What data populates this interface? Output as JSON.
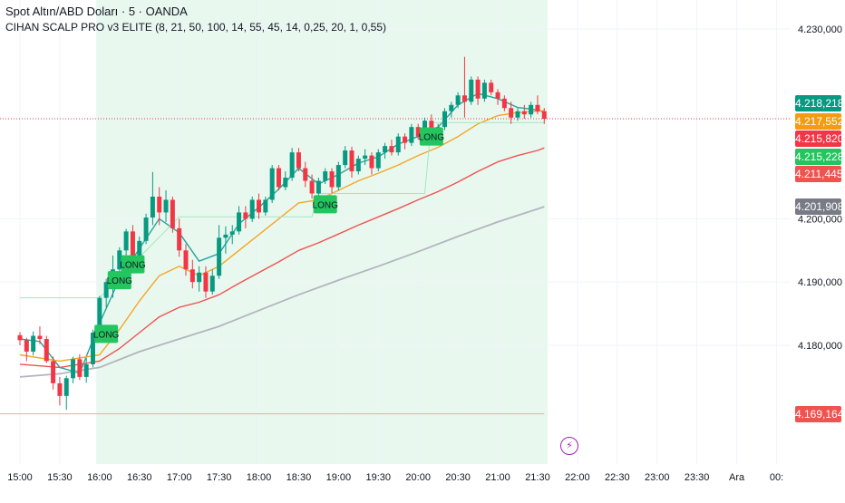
{
  "header": {
    "symbol_title": "Spot Altın/ABD Doları · 5 · OANDA",
    "indicator_title": "CIHAN SCALP PRO v3 ELITE (8, 21, 50, 100, 14, 55, 45, 14, 0,25, 20, 1, 0,55)"
  },
  "price_tags": [
    {
      "label": "4.218,218",
      "value": 4218.218,
      "color": "#089981"
    },
    {
      "label": "4.217,552",
      "value": 4217.552,
      "color": "#f39c12"
    },
    {
      "label": "4.215,820",
      "value": 4215.82,
      "color": "#f23645"
    },
    {
      "label": "4.215,228",
      "value": 4215.228,
      "color": "#22c55e"
    },
    {
      "label": "4.211,445",
      "value": 4211.445,
      "color": "#ef5350"
    },
    {
      "label": "4.201,908",
      "value": 4201.908,
      "color": "#787b86"
    },
    {
      "label": "4.169,164",
      "value": 4169.164,
      "color": "#ef5350"
    }
  ],
  "icons": {
    "bolt": "lightning-bolt-icon",
    "bolt_glyph": "⚡"
  },
  "colors": {
    "bull": "#089981",
    "bear": "#f23645",
    "session_bg": "#e8f8ef",
    "long_box": "#22c55e"
  },
  "chart_data": {
    "type": "candlestick",
    "y_ticks": [
      {
        "value": 4180,
        "label": "4.180,000"
      },
      {
        "value": 4190,
        "label": "4.190,000"
      },
      {
        "value": 4200,
        "label": "4.200,000"
      },
      {
        "value": 4230,
        "label": "4.230,000"
      }
    ],
    "ylim": [
      4166,
      4232.5
    ],
    "x_ticks": [
      "15:00",
      "15:30",
      "16:00",
      "16:30",
      "17:00",
      "17:30",
      "18:00",
      "18:30",
      "19:00",
      "19:30",
      "20:00",
      "20:30",
      "21:00",
      "21:30",
      "22:00",
      "22:30",
      "23:00",
      "23:30",
      "Ara",
      "00:"
    ],
    "x_tick_bar_index": [
      0,
      6,
      12,
      18,
      24,
      30,
      36,
      42,
      48,
      54,
      60,
      66,
      72,
      78,
      84,
      90,
      96,
      102,
      108,
      114
    ],
    "session_shading_bars": [
      12,
      79
    ],
    "last_price_line": 4215.82,
    "low_price_line": 4169.164,
    "candles": [
      [
        4181.6,
        4182.1,
        4180.0,
        4180.8
      ],
      [
        4180.8,
        4181.2,
        4177.5,
        4179.0
      ],
      [
        4179.0,
        4182.2,
        4178.4,
        4181.5
      ],
      [
        4181.5,
        4183.0,
        4180.2,
        4181.0
      ],
      [
        4181.0,
        4181.5,
        4177.2,
        4177.5
      ],
      [
        4177.5,
        4178.2,
        4173.0,
        4174.0
      ],
      [
        4174.0,
        4175.0,
        4170.5,
        4172.0
      ],
      [
        4172.0,
        4175.2,
        4169.8,
        4174.8
      ],
      [
        4174.8,
        4178.2,
        4174.0,
        4177.8
      ],
      [
        4177.8,
        4178.6,
        4174.5,
        4175.0
      ],
      [
        4175.0,
        4178.0,
        4174.1,
        4177.0
      ],
      [
        4177.0,
        4182.5,
        4176.5,
        4182.0
      ],
      [
        4182.0,
        4187.8,
        4181.5,
        4187.5
      ],
      [
        4187.5,
        4190.5,
        4186.0,
        4190.0
      ],
      [
        4190.0,
        4194.2,
        4187.5,
        4192.0
      ],
      [
        4192.0,
        4195.5,
        4191.0,
        4195.0
      ],
      [
        4195.0,
        4198.4,
        4193.5,
        4198.0
      ],
      [
        4198.0,
        4199.0,
        4193.5,
        4194.0
      ],
      [
        4194.0,
        4197.2,
        4192.5,
        4196.5
      ],
      [
        4196.5,
        4200.8,
        4196.0,
        4200.2
      ],
      [
        4200.2,
        4207.4,
        4199.0,
        4203.5
      ],
      [
        4203.5,
        4205.0,
        4199.0,
        4201.0
      ],
      [
        4201.0,
        4204.5,
        4199.5,
        4203.0
      ],
      [
        4203.0,
        4203.5,
        4197.8,
        4198.5
      ],
      [
        4198.5,
        4200.0,
        4194.0,
        4195.0
      ],
      [
        4195.0,
        4196.0,
        4191.0,
        4192.0
      ],
      [
        4192.0,
        4193.5,
        4189.0,
        4190.0
      ],
      [
        4190.0,
        4192.5,
        4188.5,
        4191.5
      ],
      [
        4191.5,
        4192.5,
        4187.5,
        4188.5
      ],
      [
        4188.5,
        4192.0,
        4188.0,
        4191.0
      ],
      [
        4191.0,
        4199.0,
        4190.5,
        4197.0
      ],
      [
        4197.0,
        4198.8,
        4194.5,
        4197.5
      ],
      [
        4197.5,
        4199.0,
        4196.0,
        4198.0
      ],
      [
        4198.0,
        4202.0,
        4197.5,
        4201.0
      ],
      [
        4201.0,
        4202.0,
        4198.5,
        4200.0
      ],
      [
        4200.0,
        4203.5,
        4199.5,
        4203.0
      ],
      [
        4203.0,
        4204.0,
        4200.0,
        4201.0
      ],
      [
        4201.0,
        4203.5,
        4200.5,
        4203.0
      ],
      [
        4203.0,
        4208.5,
        4202.5,
        4208.0
      ],
      [
        4208.0,
        4208.5,
        4204.5,
        4205.0
      ],
      [
        4205.0,
        4207.5,
        4204.5,
        4206.5
      ],
      [
        4206.5,
        4211.2,
        4206.0,
        4210.5
      ],
      [
        4210.5,
        4211.2,
        4207.5,
        4208.0
      ],
      [
        4208.0,
        4209.0,
        4205.0,
        4206.0
      ],
      [
        4206.0,
        4207.0,
        4203.2,
        4204.0
      ],
      [
        4204.0,
        4206.5,
        4203.0,
        4206.0
      ],
      [
        4206.0,
        4208.0,
        4205.5,
        4207.5
      ],
      [
        4207.5,
        4208.0,
        4204.0,
        4205.0
      ],
      [
        4205.0,
        4209.0,
        4204.5,
        4208.5
      ],
      [
        4208.5,
        4211.5,
        4208.0,
        4210.8
      ],
      [
        4210.8,
        4211.4,
        4206.5,
        4207.5
      ],
      [
        4207.5,
        4210.0,
        4207.0,
        4209.5
      ],
      [
        4209.5,
        4211.0,
        4208.5,
        4210.0
      ],
      [
        4210.0,
        4210.5,
        4207.0,
        4208.0
      ],
      [
        4208.0,
        4211.0,
        4207.5,
        4210.5
      ],
      [
        4210.5,
        4212.0,
        4209.5,
        4211.5
      ],
      [
        4211.5,
        4212.5,
        4210.0,
        4210.5
      ],
      [
        4210.5,
        4213.5,
        4210.0,
        4213.0
      ],
      [
        4213.0,
        4213.5,
        4211.0,
        4212.0
      ],
      [
        4212.0,
        4215.0,
        4211.5,
        4214.5
      ],
      [
        4214.5,
        4215.0,
        4212.5,
        4213.0
      ],
      [
        4213.0,
        4216.0,
        4212.5,
        4215.5
      ],
      [
        4215.5,
        4216.5,
        4213.5,
        4214.0
      ],
      [
        4214.0,
        4215.0,
        4213.0,
        4214.5
      ],
      [
        4214.5,
        4217.5,
        4214.0,
        4217.0
      ],
      [
        4217.0,
        4218.5,
        4216.0,
        4218.0
      ],
      [
        4218.0,
        4220.0,
        4217.5,
        4219.5
      ],
      [
        4219.5,
        4225.6,
        4216.0,
        4218.5
      ],
      [
        4218.5,
        4222.5,
        4218.0,
        4222.0
      ],
      [
        4222.0,
        4222.5,
        4218.0,
        4219.0
      ],
      [
        4219.0,
        4222.0,
        4218.5,
        4221.5
      ],
      [
        4221.5,
        4222.0,
        4219.5,
        4220.0
      ],
      [
        4220.0,
        4220.5,
        4218.0,
        4219.0
      ],
      [
        4219.0,
        4219.5,
        4217.0,
        4217.5
      ],
      [
        4217.5,
        4218.5,
        4215.0,
        4216.0
      ],
      [
        4216.0,
        4217.5,
        4215.5,
        4217.0
      ],
      [
        4217.0,
        4218.0,
        4215.8,
        4216.5
      ],
      [
        4216.5,
        4218.5,
        4216.0,
        4218.0
      ],
      [
        4218.0,
        4219.5,
        4216.5,
        4217.0
      ],
      [
        4217.0,
        4217.5,
        4215.0,
        4215.8
      ]
    ],
    "series": [
      {
        "name": "",
        "color": "#26a69a",
        "width": 1.4,
        "values": [
          [
            0,
            4181.0
          ],
          [
            3,
            4180.6
          ],
          [
            6,
            4176.5
          ],
          [
            9,
            4175.6
          ],
          [
            12,
            4183.5
          ],
          [
            15,
            4190.5
          ],
          [
            18,
            4195.3
          ],
          [
            21,
            4200.0
          ],
          [
            24,
            4197.8
          ],
          [
            27,
            4193.3
          ],
          [
            30,
            4194.5
          ],
          [
            33,
            4199.2
          ],
          [
            36,
            4201.8
          ],
          [
            39,
            4204.7
          ],
          [
            42,
            4208.0
          ],
          [
            45,
            4205.5
          ],
          [
            48,
            4207.0
          ],
          [
            51,
            4208.8
          ],
          [
            54,
            4209.8
          ],
          [
            57,
            4211.8
          ],
          [
            60,
            4213.0
          ],
          [
            63,
            4214.5
          ],
          [
            66,
            4218.0
          ],
          [
            69,
            4219.8
          ],
          [
            72,
            4219.0
          ],
          [
            75,
            4217.6
          ],
          [
            78,
            4217.2
          ],
          [
            79,
            4216.8
          ]
        ]
      },
      {
        "name": "",
        "color": "#f5a623",
        "width": 1.4,
        "values": [
          [
            0,
            4178.5
          ],
          [
            6,
            4177.5
          ],
          [
            12,
            4178.5
          ],
          [
            15,
            4182.5
          ],
          [
            18,
            4187.0
          ],
          [
            21,
            4191.0
          ],
          [
            24,
            4192.5
          ],
          [
            27,
            4191.0
          ],
          [
            30,
            4192.5
          ],
          [
            33,
            4195.0
          ],
          [
            36,
            4197.5
          ],
          [
            39,
            4200.0
          ],
          [
            42,
            4202.5
          ],
          [
            45,
            4203.0
          ],
          [
            48,
            4204.5
          ],
          [
            51,
            4206.0
          ],
          [
            54,
            4207.2
          ],
          [
            57,
            4208.5
          ],
          [
            60,
            4210.0
          ],
          [
            63,
            4211.3
          ],
          [
            66,
            4213.0
          ],
          [
            69,
            4215.0
          ],
          [
            72,
            4216.3
          ],
          [
            75,
            4216.8
          ],
          [
            78,
            4217.0
          ],
          [
            79,
            4217.1
          ]
        ]
      },
      {
        "name": "",
        "color": "#ef5350",
        "width": 1.4,
        "values": [
          [
            0,
            4177.0
          ],
          [
            6,
            4176.5
          ],
          [
            12,
            4177.5
          ],
          [
            15,
            4179.5
          ],
          [
            18,
            4182.0
          ],
          [
            21,
            4184.5
          ],
          [
            24,
            4186.0
          ],
          [
            27,
            4186.8
          ],
          [
            30,
            4188.0
          ],
          [
            33,
            4189.8
          ],
          [
            36,
            4191.5
          ],
          [
            39,
            4193.2
          ],
          [
            42,
            4195.0
          ],
          [
            45,
            4196.2
          ],
          [
            48,
            4197.6
          ],
          [
            51,
            4199.0
          ],
          [
            54,
            4200.3
          ],
          [
            57,
            4201.6
          ],
          [
            60,
            4203.0
          ],
          [
            63,
            4204.3
          ],
          [
            66,
            4205.8
          ],
          [
            69,
            4207.5
          ],
          [
            72,
            4209.0
          ],
          [
            75,
            4210.0
          ],
          [
            78,
            4210.8
          ],
          [
            79,
            4211.2
          ]
        ]
      },
      {
        "name": "",
        "color": "#b2b5be",
        "width": 1.8,
        "values": [
          [
            0,
            4175.0
          ],
          [
            6,
            4175.5
          ],
          [
            12,
            4176.5
          ],
          [
            18,
            4179.0
          ],
          [
            24,
            4181.0
          ],
          [
            30,
            4183.0
          ],
          [
            36,
            4185.5
          ],
          [
            42,
            4188.0
          ],
          [
            48,
            4190.3
          ],
          [
            54,
            4192.5
          ],
          [
            60,
            4194.8
          ],
          [
            66,
            4197.2
          ],
          [
            72,
            4199.5
          ],
          [
            79,
            4201.9
          ]
        ]
      },
      {
        "name": "",
        "color": "#a5e6bf",
        "width": 1.0,
        "values": [
          [
            0,
            4187.5
          ],
          [
            12,
            4187.5
          ],
          [
            24,
            4200.3
          ],
          [
            44,
            4200.3
          ],
          [
            45,
            4204.0
          ],
          [
            61,
            4204.0
          ],
          [
            62,
            4215.2
          ],
          [
            79,
            4215.2
          ]
        ]
      }
    ],
    "long_signals": [
      {
        "label": "LONG",
        "bar": 13,
        "y": 4181.8
      },
      {
        "label": "LONG",
        "bar": 15,
        "y": 4190.3
      },
      {
        "label": "LONG",
        "bar": 17,
        "y": 4192.8
      },
      {
        "label": "LONG",
        "bar": 46,
        "y": 4202.3
      },
      {
        "label": "LONG",
        "bar": 62,
        "y": 4213.0
      }
    ]
  }
}
